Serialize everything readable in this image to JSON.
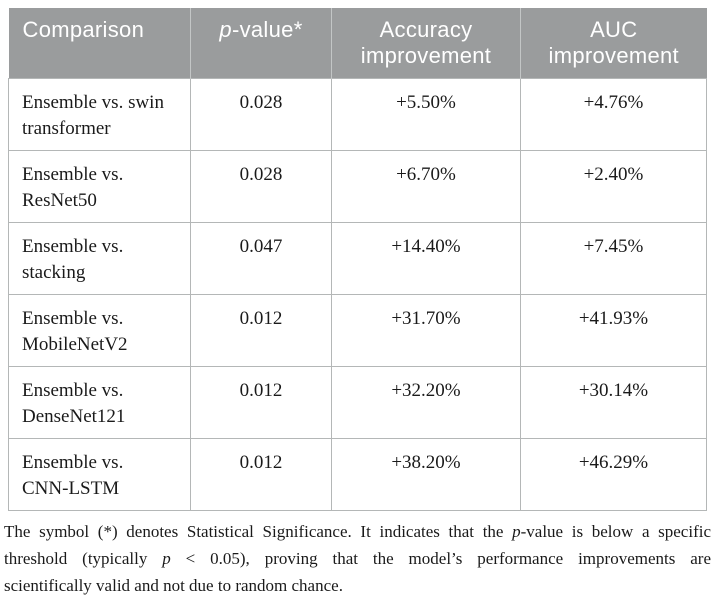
{
  "colors": {
    "header_bg": "#9a9c9d",
    "header_divider": "#c3c6c6",
    "header_text": "#ffffff",
    "border": "#b4b7b7",
    "text": "#1a1a1a",
    "page_bg": "#ffffff"
  },
  "table": {
    "columns": [
      {
        "key": "comparison",
        "runs": [
          {
            "t": "Comparison"
          }
        ]
      },
      {
        "key": "pvalue",
        "runs": [
          {
            "t": "p",
            "i": true
          },
          {
            "t": "-value*"
          }
        ]
      },
      {
        "key": "acc",
        "runs": [
          {
            "t": "Accuracy improvement"
          }
        ]
      },
      {
        "key": "auc",
        "runs": [
          {
            "t": "AUC improvement"
          }
        ]
      }
    ],
    "rows": [
      {
        "comparison": "Ensemble vs. swin transformer",
        "pvalue": "0.028",
        "acc": "+5.50%",
        "auc": "+4.76%"
      },
      {
        "comparison": "Ensemble vs. ResNet50",
        "pvalue": "0.028",
        "acc": "+6.70%",
        "auc": "+2.40%"
      },
      {
        "comparison": "Ensemble vs. stacking",
        "pvalue": "0.047",
        "acc": "+14.40%",
        "auc": "+7.45%"
      },
      {
        "comparison": "Ensemble vs. MobileNetV2",
        "pvalue": "0.012",
        "acc": "+31.70%",
        "auc": "+41.93%"
      },
      {
        "comparison": "Ensemble vs. DenseNet121",
        "pvalue": "0.012",
        "acc": "+32.20%",
        "auc": "+30.14%"
      },
      {
        "comparison": "Ensemble vs. CNN-LSTM",
        "pvalue": "0.012",
        "acc": "+38.20%",
        "auc": "+46.29%"
      }
    ]
  },
  "footnote": {
    "lines": [
      [
        {
          "t": "The symbol (*) denotes Statistical Significance. It indicates that the "
        },
        {
          "t": "p",
          "i": true
        },
        {
          "t": "-value is below a specific"
        }
      ],
      [
        {
          "t": "threshold (typically "
        },
        {
          "t": "p",
          "i": true
        },
        {
          "t": " < 0.05), proving that the model’s performance improvements are"
        }
      ],
      [
        {
          "t": "scientifically valid and not due to random chance."
        }
      ]
    ]
  }
}
